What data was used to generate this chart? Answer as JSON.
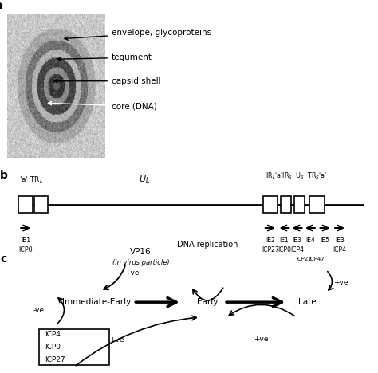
{
  "panel_a_label": "a",
  "panel_b_label": "b",
  "panel_c_label": "c",
  "annotations": {
    "envelope": "envelope, glycoproteins",
    "tegument": "tegument",
    "capsid": "capsid shell",
    "core": "core (DNA)"
  },
  "bg_color": "#ffffff",
  "text_color": "#000000"
}
